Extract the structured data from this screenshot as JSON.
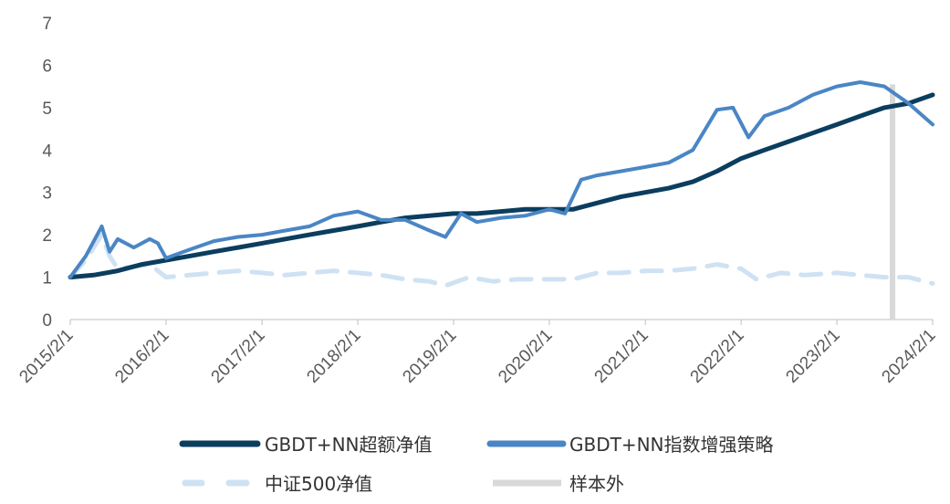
{
  "chart_data": {
    "type": "line",
    "title": "",
    "xlabel": "",
    "ylabel": "",
    "ylim": [
      0,
      7
    ],
    "y_ticks": [
      0,
      1,
      2,
      3,
      4,
      5,
      6,
      7
    ],
    "x_ticks": [
      "2015/2/1",
      "2016/2/1",
      "2017/2/1",
      "2018/2/1",
      "2019/2/1",
      "2020/2/1",
      "2021/2/1",
      "2022/2/1",
      "2023/2/1",
      "2024/2/1"
    ],
    "grid": false,
    "legend_position": "bottom",
    "out_of_sample_start": "2023/9/1",
    "series": [
      {
        "name": "GBDT+NN超额净值",
        "color": "#0b3d5e",
        "style": "solid",
        "x": [
          "2015/2/1",
          "2015/5/1",
          "2015/8/1",
          "2015/11/1",
          "2016/2/1",
          "2016/5/1",
          "2016/8/1",
          "2016/11/1",
          "2017/2/1",
          "2017/5/1",
          "2017/8/1",
          "2017/11/1",
          "2018/2/1",
          "2018/5/1",
          "2018/8/1",
          "2018/11/1",
          "2019/2/1",
          "2019/5/1",
          "2019/8/1",
          "2019/11/1",
          "2020/2/1",
          "2020/5/1",
          "2020/8/1",
          "2020/11/1",
          "2021/2/1",
          "2021/5/1",
          "2021/8/1",
          "2021/11/1",
          "2022/2/1",
          "2022/5/1",
          "2022/8/1",
          "2022/11/1",
          "2023/2/1",
          "2023/5/1",
          "2023/8/1",
          "2023/11/1",
          "2024/2/1"
        ],
        "values": [
          1.0,
          1.05,
          1.15,
          1.3,
          1.4,
          1.5,
          1.6,
          1.7,
          1.8,
          1.9,
          2.0,
          2.1,
          2.2,
          2.3,
          2.4,
          2.45,
          2.5,
          2.5,
          2.55,
          2.6,
          2.6,
          2.6,
          2.75,
          2.9,
          3.0,
          3.1,
          3.25,
          3.5,
          3.8,
          4.0,
          4.2,
          4.4,
          4.6,
          4.8,
          5.0,
          5.1,
          5.3
        ]
      },
      {
        "name": "GBDT+NN指数增强策略",
        "color": "#4a86c5",
        "style": "solid",
        "x": [
          "2015/2/1",
          "2015/4/1",
          "2015/6/1",
          "2015/7/1",
          "2015/8/1",
          "2015/10/1",
          "2015/12/1",
          "2016/1/1",
          "2016/2/1",
          "2016/5/1",
          "2016/8/1",
          "2016/11/1",
          "2017/2/1",
          "2017/5/1",
          "2017/8/1",
          "2017/11/1",
          "2018/2/1",
          "2018/5/1",
          "2018/8/1",
          "2018/11/1",
          "2019/1/1",
          "2019/3/1",
          "2019/5/1",
          "2019/8/1",
          "2019/11/1",
          "2020/2/1",
          "2020/4/1",
          "2020/6/1",
          "2020/8/1",
          "2020/11/1",
          "2021/2/1",
          "2021/5/1",
          "2021/8/1",
          "2021/11/1",
          "2022/1/1",
          "2022/3/1",
          "2022/5/1",
          "2022/8/1",
          "2022/11/1",
          "2023/2/1",
          "2023/5/1",
          "2023/8/1",
          "2023/11/1",
          "2024/2/1"
        ],
        "values": [
          1.0,
          1.5,
          2.2,
          1.6,
          1.9,
          1.7,
          1.9,
          1.8,
          1.45,
          1.65,
          1.85,
          1.95,
          2.0,
          2.1,
          2.2,
          2.45,
          2.55,
          2.35,
          2.35,
          2.1,
          1.95,
          2.5,
          2.3,
          2.4,
          2.45,
          2.6,
          2.5,
          3.3,
          3.4,
          3.5,
          3.6,
          3.7,
          4.0,
          4.95,
          5.0,
          4.3,
          4.8,
          5.0,
          5.3,
          5.5,
          5.6,
          5.5,
          5.1,
          4.6
        ]
      },
      {
        "name": "中证500净值",
        "color": "#cfe2f3",
        "style": "dashed",
        "x": [
          "2015/2/1",
          "2015/4/1",
          "2015/6/1",
          "2015/7/1",
          "2015/8/1",
          "2015/10/1",
          "2015/12/1",
          "2016/2/1",
          "2016/5/1",
          "2016/8/1",
          "2016/11/1",
          "2017/2/1",
          "2017/5/1",
          "2017/8/1",
          "2017/11/1",
          "2018/2/1",
          "2018/5/1",
          "2018/8/1",
          "2018/11/1",
          "2019/1/1",
          "2019/4/1",
          "2019/7/1",
          "2019/10/1",
          "2020/2/1",
          "2020/5/1",
          "2020/8/1",
          "2020/11/1",
          "2021/2/1",
          "2021/5/1",
          "2021/8/1",
          "2021/11/1",
          "2022/2/1",
          "2022/4/1",
          "2022/7/1",
          "2022/10/1",
          "2023/2/1",
          "2023/5/1",
          "2023/8/1",
          "2023/11/1",
          "2024/2/1"
        ],
        "values": [
          1.0,
          1.4,
          2.0,
          1.5,
          1.2,
          1.25,
          1.3,
          1.0,
          1.05,
          1.1,
          1.15,
          1.1,
          1.05,
          1.1,
          1.15,
          1.1,
          1.05,
          0.95,
          0.9,
          0.8,
          1.0,
          0.9,
          0.95,
          0.95,
          0.95,
          1.1,
          1.1,
          1.15,
          1.15,
          1.2,
          1.3,
          1.2,
          0.95,
          1.1,
          1.05,
          1.1,
          1.05,
          1.0,
          1.0,
          0.85
        ]
      },
      {
        "name": "样本外",
        "color": "#d9d9d9",
        "style": "band"
      }
    ]
  }
}
